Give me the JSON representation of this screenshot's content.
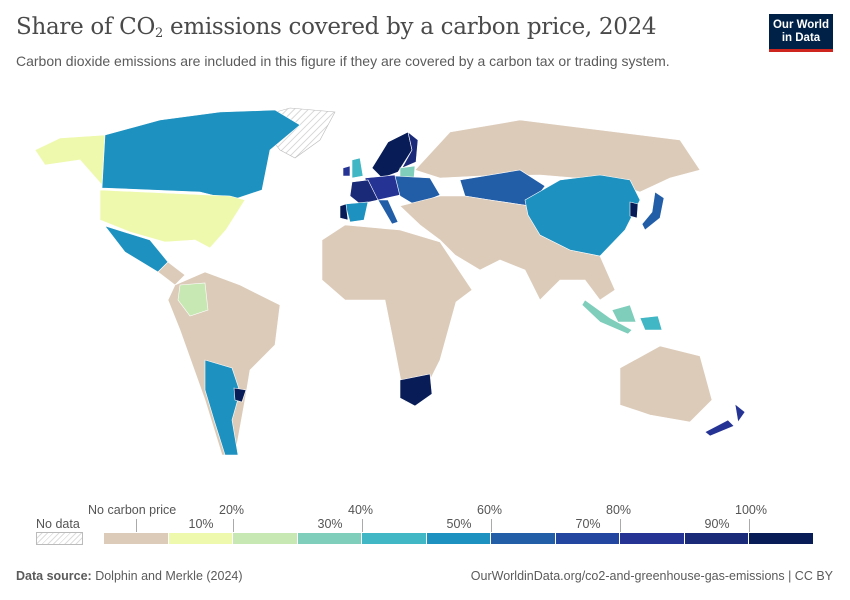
{
  "header": {
    "title_pre": "Share of CO",
    "title_sub": "2",
    "title_post": " emissions covered by a carbon price, 2024",
    "subtitle": "Carbon dioxide emissions are included in this figure if they are covered by a carbon tax or trading system.",
    "logo_line1": "Our World",
    "logo_line2": "in Data"
  },
  "legend": {
    "no_data_label": "No data",
    "no_price_label": "No carbon price",
    "bins": [
      {
        "label": "No carbon price",
        "color": "#dccbb9"
      },
      {
        "label": "10%",
        "color": "#eff9ae"
      },
      {
        "label": "20%",
        "color": "#c8e8b3"
      },
      {
        "label": "30%",
        "color": "#7fcdbb"
      },
      {
        "label": "40%",
        "color": "#41b6c4"
      },
      {
        "label": "50%",
        "color": "#1d91c0"
      },
      {
        "label": "60%",
        "color": "#225ea8"
      },
      {
        "label": "70%",
        "color": "#2346a0"
      },
      {
        "label": "80%",
        "color": "#253494"
      },
      {
        "label": "90%",
        "color": "#1a2a79"
      },
      {
        "label": "100%",
        "color": "#081d58"
      }
    ],
    "upper_labels": [
      "20%",
      "40%",
      "60%",
      "80%",
      "100%"
    ],
    "lower_labels": [
      "10%",
      "30%",
      "50%",
      "70%",
      "90%"
    ]
  },
  "map_fills": {
    "alaska": 1,
    "canada": 5,
    "usa": 1,
    "mexico": 5,
    "central-america": 0,
    "south-america": 0,
    "colombia": 2,
    "argentina": 5,
    "uruguay": 10,
    "scandinavia": 10,
    "finland": 9,
    "uk": 4,
    "ireland": 8,
    "france": 9,
    "spain": 5,
    "portugal": 10,
    "central-europe": 8,
    "eastern-europe": 6,
    "italy": 6,
    "baltics": 3,
    "russia": 0,
    "kazakhstan": 6,
    "china": 5,
    "korea": 10,
    "japan": 6,
    "asia-rest": 0,
    "africa": 0,
    "south-africa": 10,
    "indonesia": 3,
    "png": 4,
    "australia": 0,
    "new-zealand": 8
  },
  "footer": {
    "source_label": "Data source:",
    "source_value": " Dolphin and Merkle (2024)",
    "url": "OurWorldinData.org/co2-and-greenhouse-gas-emissions | CC BY"
  }
}
